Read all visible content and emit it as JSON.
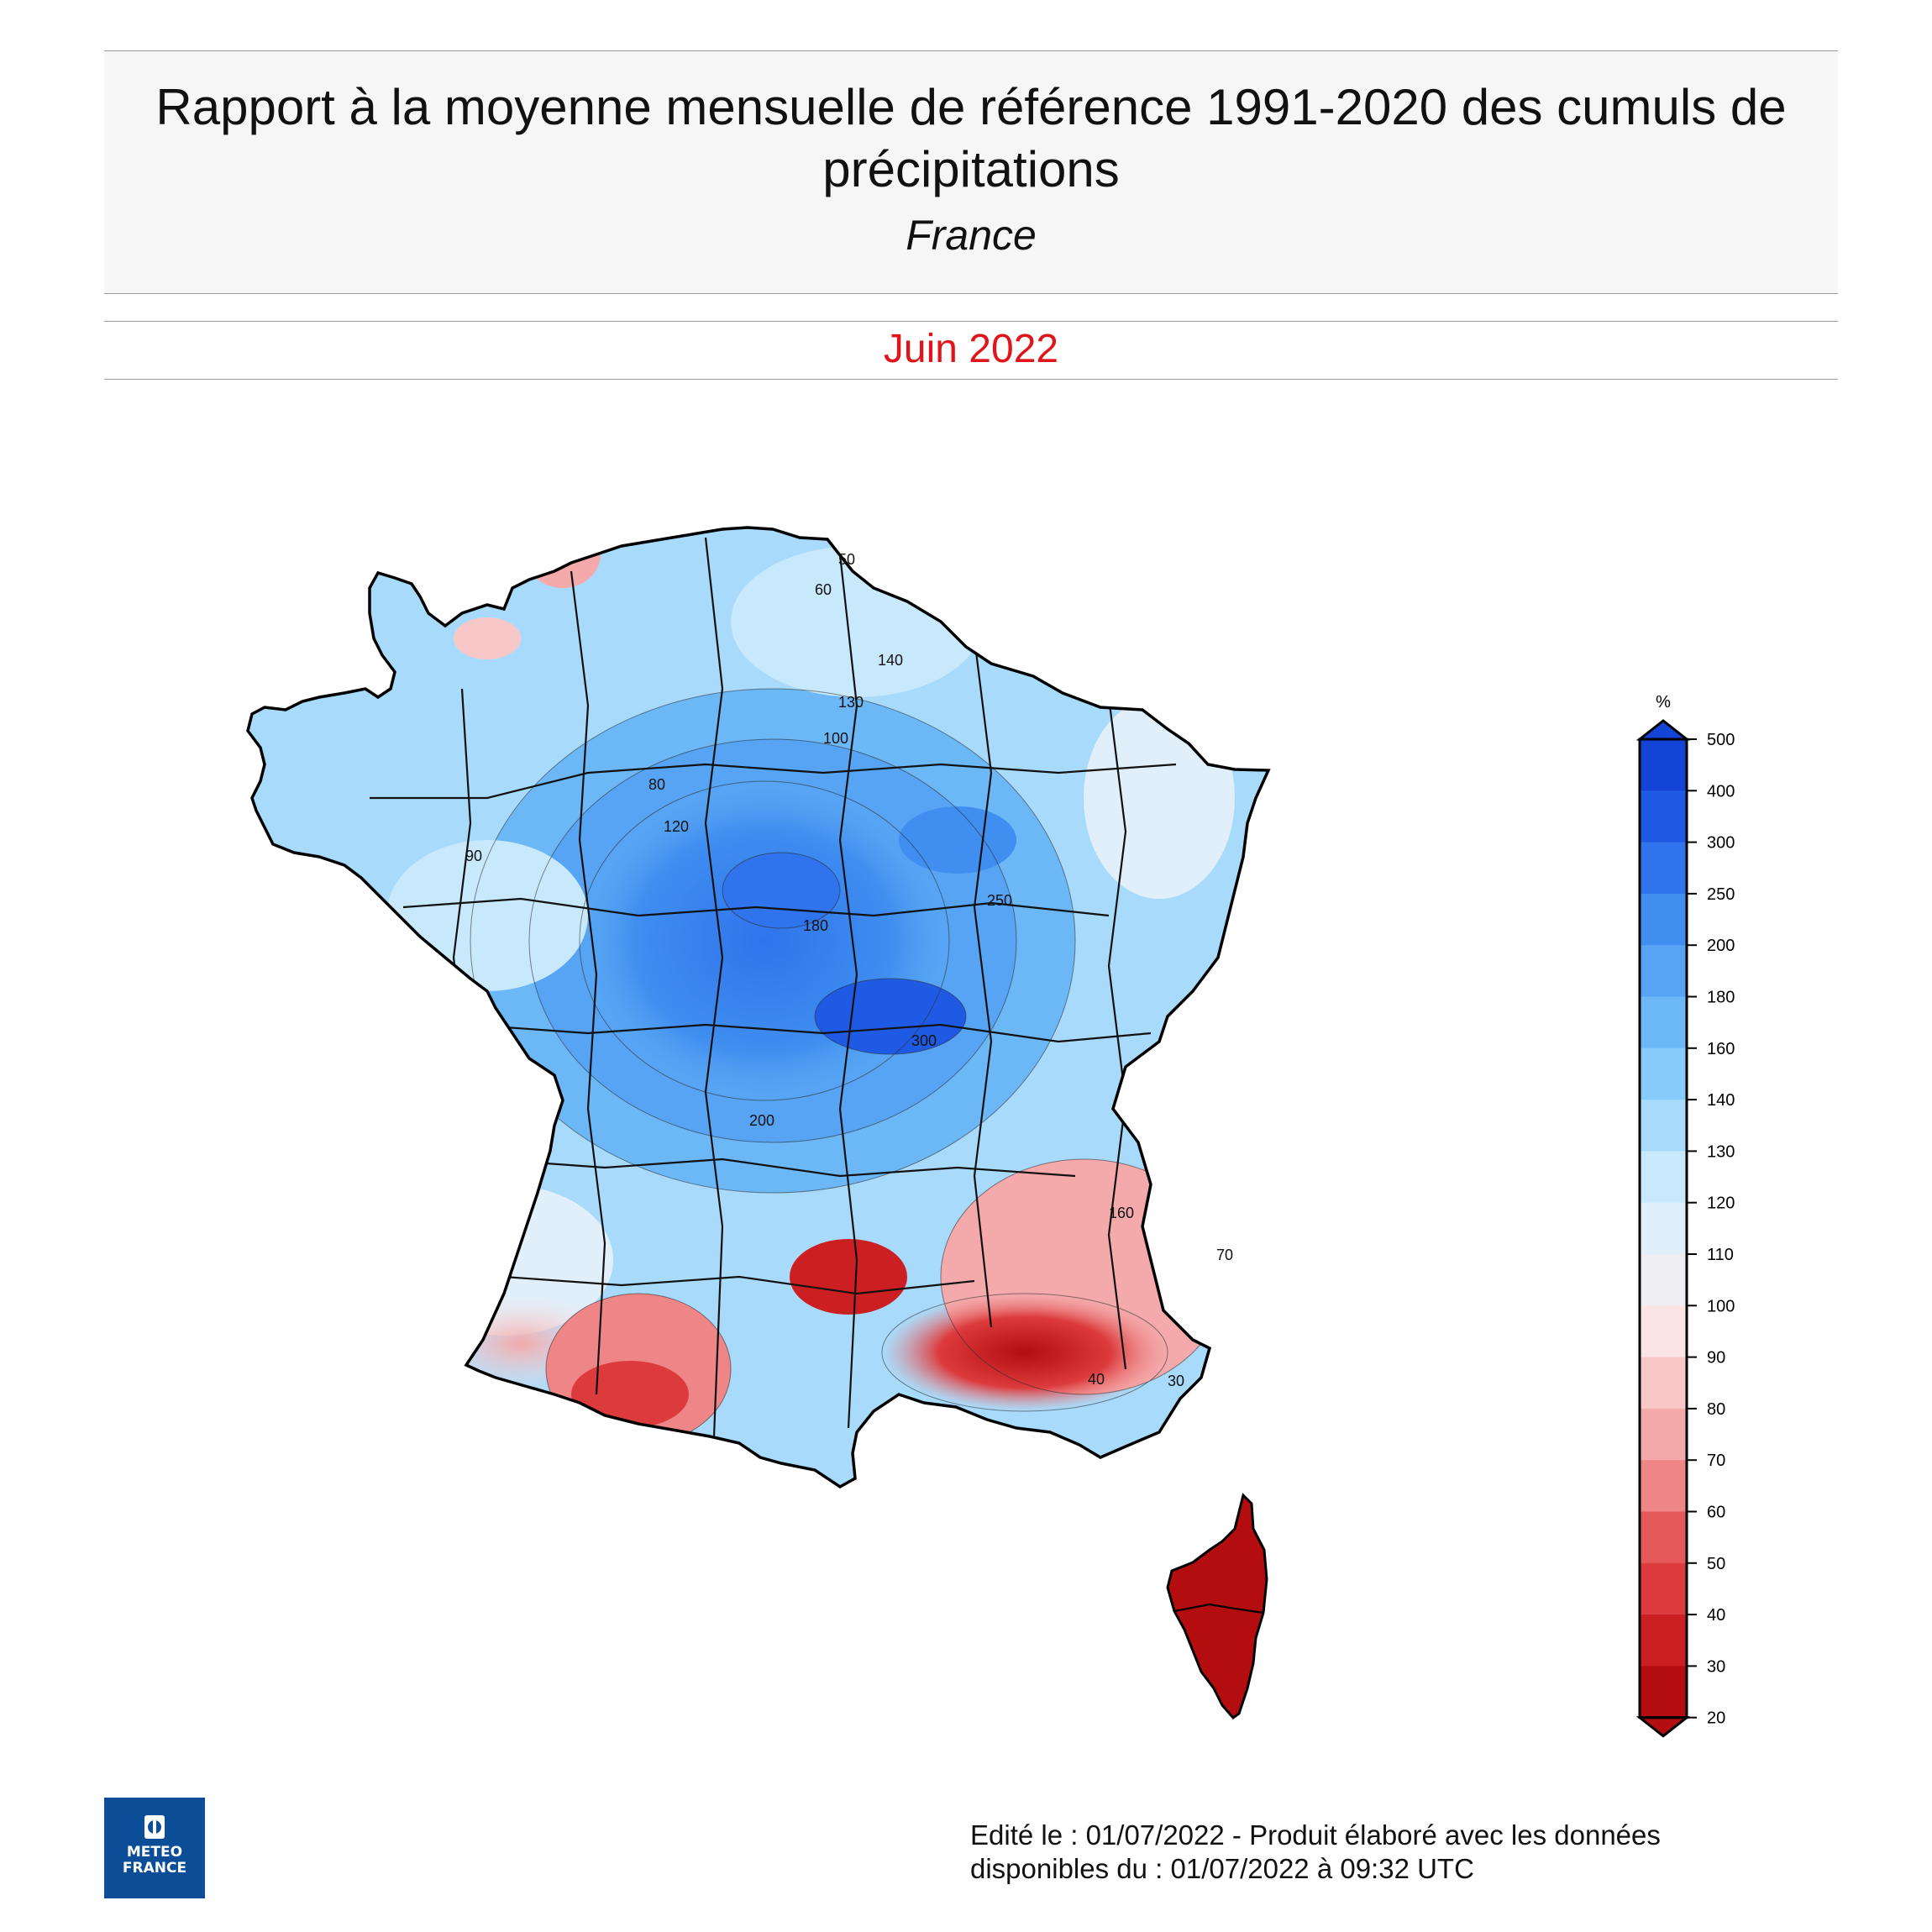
{
  "title": "Rapport à la moyenne mensuelle de référence 1991-2020 des cumuls de précipitations",
  "region": "France",
  "period": "Juin 2022",
  "legend": {
    "unit": "%",
    "levels": [
      "500",
      "400",
      "300",
      "250",
      "200",
      "180",
      "160",
      "140",
      "130",
      "120",
      "110",
      "100",
      "90",
      "80",
      "70",
      "60",
      "50",
      "40",
      "30",
      "20"
    ],
    "colors": [
      "#1344d6",
      "#1f5ae5",
      "#2f74ec",
      "#3f8ef0",
      "#56a4f3",
      "#6cb8f7",
      "#87cbfa",
      "#a8dbfb",
      "#c8e8fb",
      "#e0effa",
      "#eeeef3",
      "#fbe4e4",
      "#f8c8c8",
      "#f4a9aa",
      "#ee8586",
      "#e6595b",
      "#dc3a3c",
      "#cc1f22",
      "#b30d10"
    ],
    "top_arrow_color": "#1344d6",
    "bottom_arrow_color": "#b30d10"
  },
  "map_labels": [
    {
      "text": "50"
    },
    {
      "text": "60"
    },
    {
      "text": "140"
    },
    {
      "text": "130"
    },
    {
      "text": "100"
    },
    {
      "text": "120"
    },
    {
      "text": "90"
    },
    {
      "text": "80"
    },
    {
      "text": "180"
    },
    {
      "text": "250"
    },
    {
      "text": "300"
    },
    {
      "text": "200"
    },
    {
      "text": "160"
    },
    {
      "text": "70"
    },
    {
      "text": "40"
    },
    {
      "text": "30"
    }
  ],
  "logo": {
    "line1": "METEO",
    "line2": "FRANCE"
  },
  "footer": {
    "line1": "Edité le : 01/07/2022 - Produit élaboré avec les données",
    "line2": "disponibles du : 01/07/2022 à 09:32 UTC"
  }
}
